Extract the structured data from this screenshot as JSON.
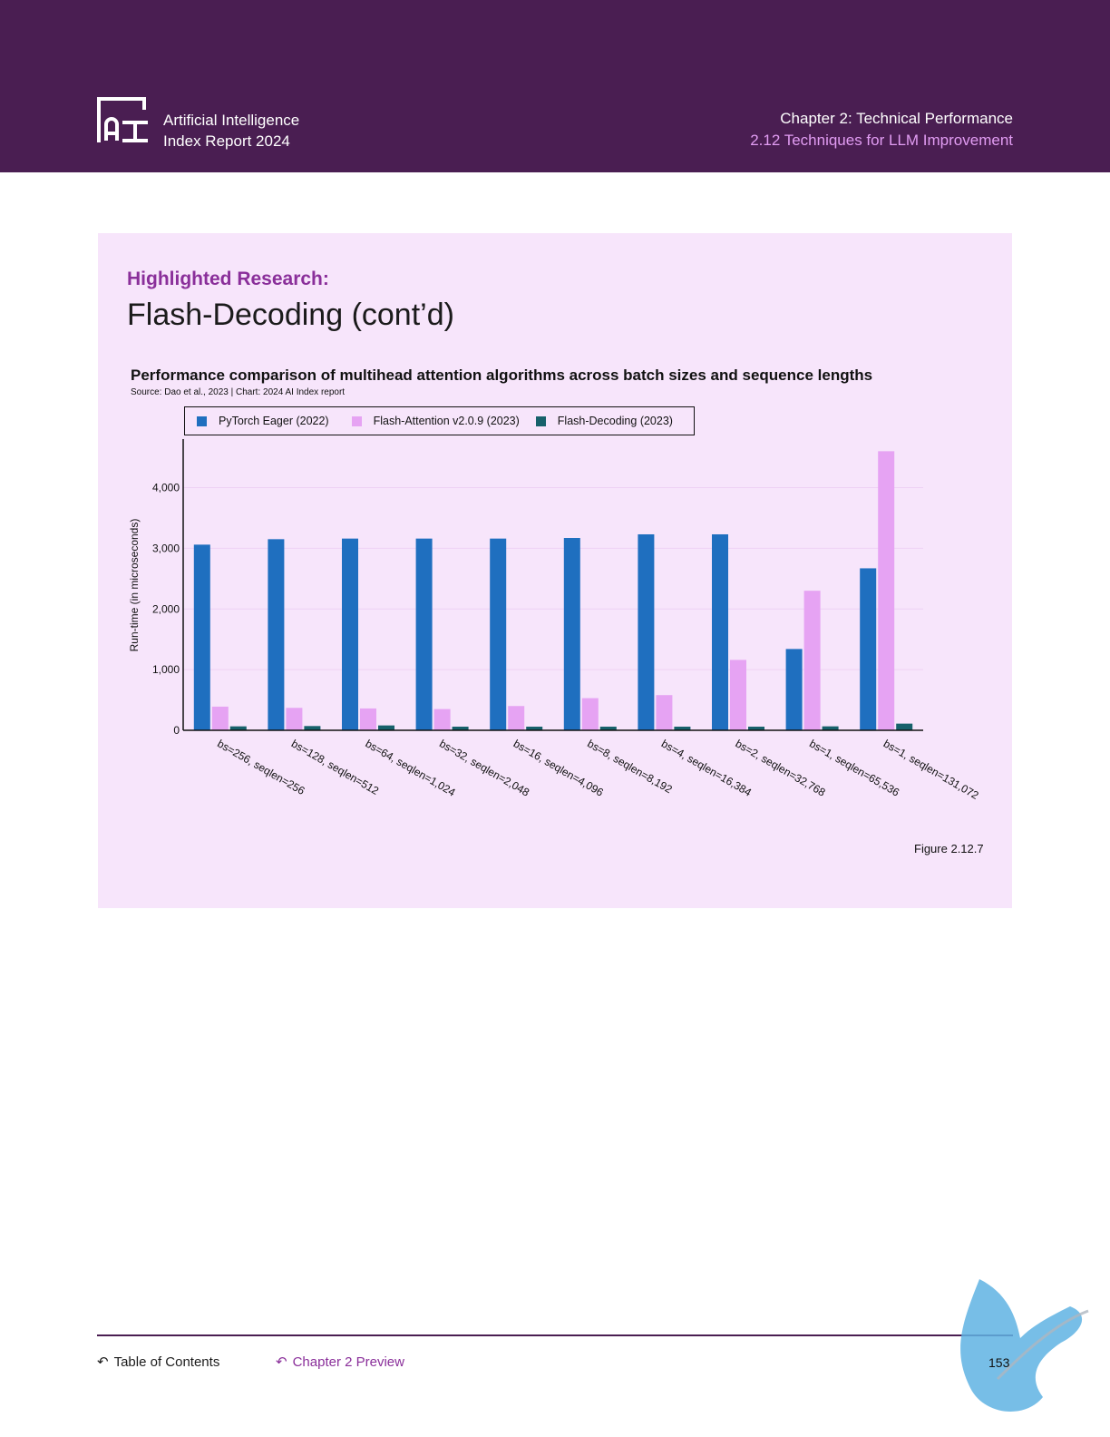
{
  "header": {
    "report_line1": "Artificial Intelligence",
    "report_line2": "Index Report 2024",
    "chapter_title": "Chapter 2: Technical Performance",
    "chapter_section": "2.12 Techniques for LLM Improvement"
  },
  "panel": {
    "label": "Highlighted Research:",
    "title": "Flash-Decoding (cont’d)"
  },
  "chart_data": {
    "type": "bar",
    "title": "Performance comparison of multihead attention algorithms across batch sizes and sequence lengths",
    "source": "Source: Dao et al., 2023 | Chart: 2024 AI Index report",
    "ylabel": "Run-time (in microseconds)",
    "xlabel": "",
    "ylim": [
      0,
      4800
    ],
    "yticks": [
      0,
      1000,
      2000,
      3000,
      4000
    ],
    "ytick_labels": [
      "0",
      "1,000",
      "2,000",
      "3,000",
      "4,000"
    ],
    "legend_position": "top",
    "categories": [
      "bs=256, seqlen=256",
      "bs=128, seqlen=512",
      "bs=64, seqlen=1,024",
      "bs=32, seqlen=2,048",
      "bs=16, seqlen=4,096",
      "bs=8, seqlen=8,192",
      "bs=4, seqlen=16,384",
      "bs=2, seqlen=32,768",
      "bs=1, seqlen=65,536",
      "bs=1, seqlen=131,072"
    ],
    "series": [
      {
        "name": "PyTorch Eager (2022)",
        "color": "#1f6fbf",
        "values": [
          3060,
          3150,
          3160,
          3160,
          3160,
          3170,
          3230,
          3230,
          1340,
          2670
        ]
      },
      {
        "name": "Flash-Attention v2.0.9 (2023)",
        "color": "#e6a3f3",
        "values": [
          390,
          370,
          360,
          350,
          400,
          530,
          580,
          1160,
          2300,
          4600
        ]
      },
      {
        "name": "Flash-Decoding (2023)",
        "color": "#17616b",
        "values": [
          65,
          70,
          80,
          60,
          60,
          60,
          60,
          60,
          65,
          110
        ]
      }
    ]
  },
  "figure_label": "Figure 2.12.7",
  "footer": {
    "toc": "Table of Contents",
    "chapter_preview": "Chapter 2 Preview",
    "page_number": "153"
  }
}
